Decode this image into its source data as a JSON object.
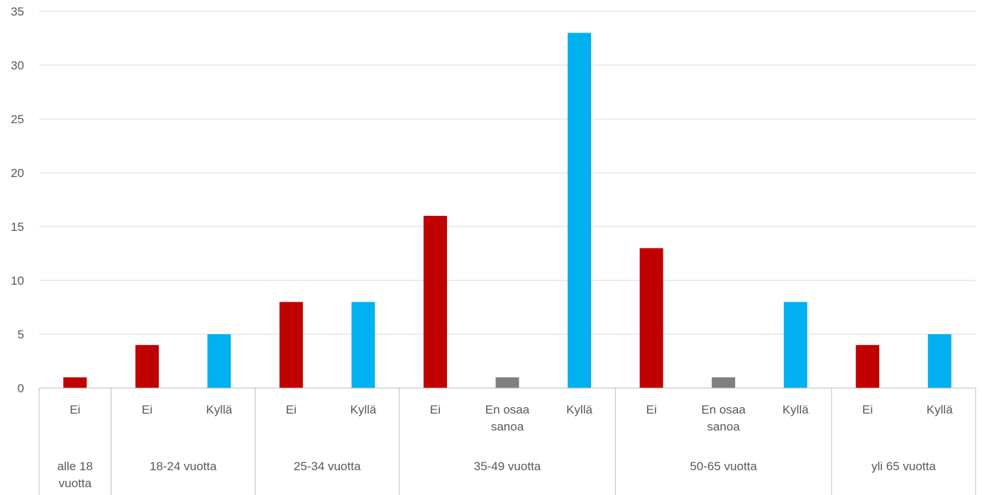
{
  "chart_data": {
    "type": "bar",
    "title": "",
    "xlabel": "",
    "ylabel": "",
    "ylim": [
      0,
      35
    ],
    "yticks": [
      0,
      5,
      10,
      15,
      20,
      25,
      30,
      35
    ],
    "grid": true,
    "legend": "none",
    "colors": {
      "Ei": "#c00000",
      "En osaa sanoa": "#808080",
      "Kyllä": "#00b0f0"
    },
    "groups": [
      {
        "label": "alle 18 vuotta",
        "label_lines": [
          "alle 18",
          "vuotta"
        ],
        "bars": [
          {
            "category": "Ei",
            "category_lines": [
              "Ei"
            ],
            "value": 1
          }
        ]
      },
      {
        "label": "18-24 vuotta",
        "label_lines": [
          "18-24 vuotta"
        ],
        "bars": [
          {
            "category": "Ei",
            "category_lines": [
              "Ei"
            ],
            "value": 4
          },
          {
            "category": "Kyllä",
            "category_lines": [
              "Kyllä"
            ],
            "value": 5
          }
        ]
      },
      {
        "label": "25-34 vuotta",
        "label_lines": [
          "25-34 vuotta"
        ],
        "bars": [
          {
            "category": "Ei",
            "category_lines": [
              "Ei"
            ],
            "value": 8
          },
          {
            "category": "Kyllä",
            "category_lines": [
              "Kyllä"
            ],
            "value": 8
          }
        ]
      },
      {
        "label": "35-49 vuotta",
        "label_lines": [
          "35-49 vuotta"
        ],
        "bars": [
          {
            "category": "Ei",
            "category_lines": [
              "Ei"
            ],
            "value": 16
          },
          {
            "category": "En osaa sanoa",
            "category_lines": [
              "En osaa",
              "sanoa"
            ],
            "value": 1
          },
          {
            "category": "Kyllä",
            "category_lines": [
              "Kyllä"
            ],
            "value": 33
          }
        ]
      },
      {
        "label": "50-65 vuotta",
        "label_lines": [
          "50-65 vuotta"
        ],
        "bars": [
          {
            "category": "Ei",
            "category_lines": [
              "Ei"
            ],
            "value": 13
          },
          {
            "category": "En osaa sanoa",
            "category_lines": [
              "En osaa",
              "sanoa"
            ],
            "value": 1
          },
          {
            "category": "Kyllä",
            "category_lines": [
              "Kyllä"
            ],
            "value": 8
          }
        ]
      },
      {
        "label": "yli 65 vuotta",
        "label_lines": [
          "yli 65 vuotta"
        ],
        "bars": [
          {
            "category": "Ei",
            "category_lines": [
              "Ei"
            ],
            "value": 4
          },
          {
            "category": "Kyllä",
            "category_lines": [
              "Kyllä"
            ],
            "value": 5
          }
        ]
      }
    ]
  }
}
